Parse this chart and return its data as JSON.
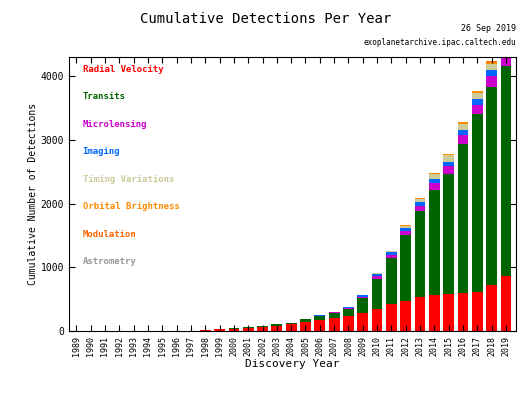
{
  "years": [
    1989,
    1990,
    1991,
    1992,
    1993,
    1994,
    1995,
    1996,
    1997,
    1998,
    1999,
    2000,
    2001,
    2002,
    2003,
    2004,
    2005,
    2006,
    2007,
    2008,
    2009,
    2010,
    2011,
    2012,
    2013,
    2014,
    2015,
    2016,
    2017,
    2018,
    2019
  ],
  "radial_velocity": [
    0,
    0,
    0,
    0,
    0,
    0,
    1,
    8,
    12,
    19,
    30,
    42,
    53,
    67,
    90,
    107,
    144,
    170,
    202,
    236,
    289,
    355,
    422,
    476,
    534,
    567,
    586,
    601,
    616,
    731,
    873
  ],
  "transits": [
    0,
    0,
    0,
    0,
    0,
    0,
    0,
    0,
    0,
    0,
    0,
    5,
    10,
    14,
    18,
    28,
    50,
    67,
    85,
    110,
    226,
    468,
    723,
    1026,
    1341,
    1648,
    1879,
    2338,
    2779,
    3096,
    3282
  ],
  "microlensing": [
    0,
    0,
    0,
    0,
    0,
    0,
    0,
    0,
    0,
    0,
    0,
    0,
    0,
    0,
    1,
    1,
    5,
    8,
    12,
    18,
    24,
    36,
    50,
    67,
    85,
    100,
    118,
    131,
    146,
    163,
    183
  ],
  "imaging": [
    0,
    0,
    0,
    0,
    0,
    0,
    0,
    0,
    0,
    0,
    0,
    0,
    0,
    0,
    0,
    0,
    0,
    4,
    9,
    18,
    25,
    36,
    43,
    51,
    57,
    62,
    69,
    78,
    87,
    95,
    103
  ],
  "timing_variations": [
    0,
    0,
    0,
    0,
    0,
    0,
    0,
    0,
    0,
    0,
    0,
    0,
    0,
    0,
    0,
    0,
    0,
    0,
    0,
    0,
    6,
    15,
    20,
    35,
    60,
    85,
    100,
    102,
    103,
    105,
    106
  ],
  "orbital_brightness": [
    0,
    0,
    0,
    0,
    0,
    0,
    0,
    0,
    0,
    0,
    0,
    0,
    0,
    0,
    0,
    0,
    0,
    0,
    0,
    0,
    0,
    0,
    2,
    7,
    11,
    15,
    20,
    26,
    29,
    30,
    31
  ],
  "modulation": [
    0,
    0,
    0,
    0,
    0,
    0,
    0,
    0,
    0,
    0,
    0,
    0,
    0,
    0,
    0,
    0,
    0,
    0,
    0,
    0,
    0,
    0,
    0,
    0,
    0,
    0,
    2,
    4,
    5,
    6,
    7
  ],
  "astrometry": [
    0,
    0,
    0,
    0,
    0,
    0,
    0,
    0,
    0,
    0,
    0,
    0,
    0,
    0,
    0,
    0,
    0,
    0,
    0,
    0,
    0,
    1,
    1,
    1,
    1,
    1,
    1,
    1,
    1,
    1,
    1
  ],
  "colors": {
    "radial_velocity": "#ff0000",
    "transits": "#006400",
    "microlensing": "#cc00cc",
    "imaging": "#0066ff",
    "timing_variations": "#cccc99",
    "orbital_brightness": "#ff8c00",
    "modulation": "#ff6600",
    "astrometry": "#999999"
  },
  "legend_labels": [
    "Radial Velocity",
    "Transits",
    "Microlensing",
    "Imaging",
    "Timing Variations",
    "Orbital Brightness",
    "Modulation",
    "Astrometry"
  ],
  "legend_colors": [
    "#ff0000",
    "#006400",
    "#cc00cc",
    "#0066ff",
    "#cccc99",
    "#ff8c00",
    "#ff6600",
    "#999999"
  ],
  "title": "Cumulative Detections Per Year",
  "xlabel": "Discovery Year",
  "ylabel": "Cumulative Number of Detections",
  "date_text": "26 Sep 2019",
  "url_text": "exoplanetarchive.ipac.caltech.edu",
  "ylim": [
    0,
    4300
  ],
  "yticks": [
    0,
    1000,
    2000,
    3000,
    4000
  ],
  "background_color": "#ffffff"
}
